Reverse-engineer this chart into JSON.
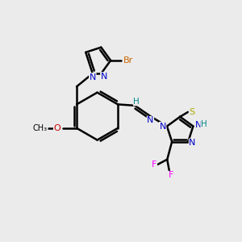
{
  "bg_color": "#ebebeb",
  "bond_color": "#000000",
  "bond_width": 1.8,
  "atoms": {
    "N_blue": "#0000cc",
    "S_yellow": "#aaaa00",
    "F_pink": "#ff00ff",
    "Br_orange": "#cc6600",
    "O_red": "#cc0000",
    "H_teal": "#008888",
    "C_black": "#000000"
  },
  "figsize": [
    3.0,
    3.0
  ],
  "dpi": 100,
  "xlim": [
    0,
    10
  ],
  "ylim": [
    0,
    10
  ]
}
